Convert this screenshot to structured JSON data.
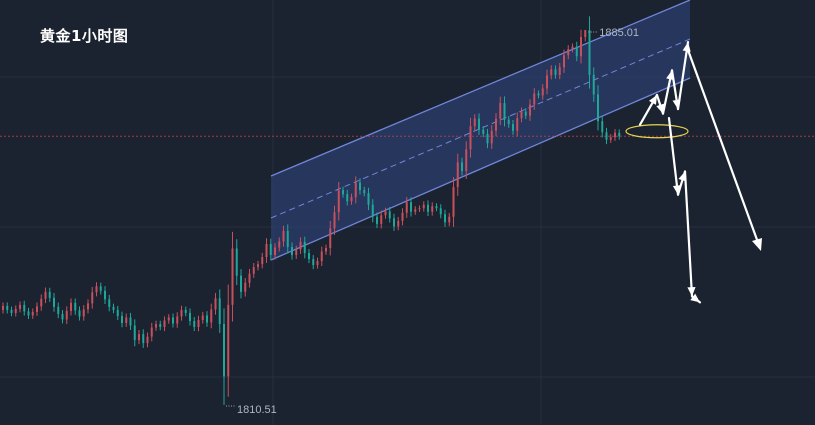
{
  "chart_data": {
    "type": "candlestick",
    "title": "黄金1小时图",
    "price_labels": {
      "high": "1885.01",
      "low": "1810.51"
    },
    "high_value": 1885.01,
    "low_value": 1810.51,
    "bullish_color": "#c8505d",
    "bearish_color": "#1fa89a",
    "channel_color": "#6f86d9",
    "channel_fill": "#2c3e6e",
    "forecast_arrow_color": "#ffffff",
    "highlight_ellipse_color": "#e6d64a",
    "reference_line_color": "#b0404a",
    "grid": true,
    "closes": [
      1830.2,
      1829.4,
      1828.8,
      1829.6,
      1830.4,
      1829.1,
      1828.3,
      1829.0,
      1830.1,
      1831.6,
      1833.0,
      1831.8,
      1830.0,
      1828.6,
      1827.5,
      1829.2,
      1830.8,
      1829.3,
      1828.1,
      1829.5,
      1830.7,
      1832.9,
      1834.1,
      1833.2,
      1831.5,
      1830.0,
      1829.4,
      1828.2,
      1826.8,
      1827.9,
      1826.3,
      1823.4,
      1824.6,
      1822.8,
      1824.1,
      1825.9,
      1826.6,
      1826.0,
      1827.3,
      1827.9,
      1826.7,
      1828.1,
      1829.4,
      1828.8,
      1827.2,
      1826.0,
      1827.4,
      1828.3,
      1826.9,
      1829.5,
      1831.7,
      1826.6,
      1816.2,
      1830.4,
      1841.6,
      1836.2,
      1833.0,
      1834.8,
      1836.6,
      1837.9,
      1838.5,
      1839.9,
      1842.5,
      1840.3,
      1841.8,
      1843.0,
      1845.1,
      1841.9,
      1840.3,
      1841.4,
      1842.9,
      1840.7,
      1839.5,
      1838.3,
      1839.1,
      1841.0,
      1841.7,
      1845.6,
      1848.8,
      1853.2,
      1852.4,
      1851.0,
      1851.8,
      1854.7,
      1853.2,
      1852.6,
      1850.3,
      1847.9,
      1846.5,
      1848.2,
      1849.0,
      1847.6,
      1846.0,
      1847.1,
      1848.7,
      1850.8,
      1848.9,
      1849.4,
      1849.6,
      1850.3,
      1848.9,
      1850.0,
      1849.6,
      1848.4,
      1846.8,
      1847.9,
      1853.8,
      1858.7,
      1857.0,
      1861.3,
      1865.9,
      1867.4,
      1865.2,
      1864.4,
      1862.5,
      1865.0,
      1867.4,
      1870.5,
      1867.2,
      1866.3,
      1865.0,
      1867.5,
      1868.8,
      1868.0,
      1870.2,
      1872.4,
      1872.0,
      1873.4,
      1876.0,
      1877.2,
      1876.1,
      1877.6,
      1880.0,
      1881.2,
      1881.7,
      1879.8,
      1883.6,
      1885.0,
      1876.1,
      1872.2,
      1866.9,
      1864.7,
      1863.2,
      1863.7,
      1864.6,
      1863.9
    ],
    "forecast_path": [
      [
        1866.2,
        1872.1,
        1868.4,
        1877.0,
        1869.3,
        1882.6
      ],
      [
        1867.5,
        1852.3,
        1856.9,
        1832.1,
        1830.9
      ]
    ]
  }
}
